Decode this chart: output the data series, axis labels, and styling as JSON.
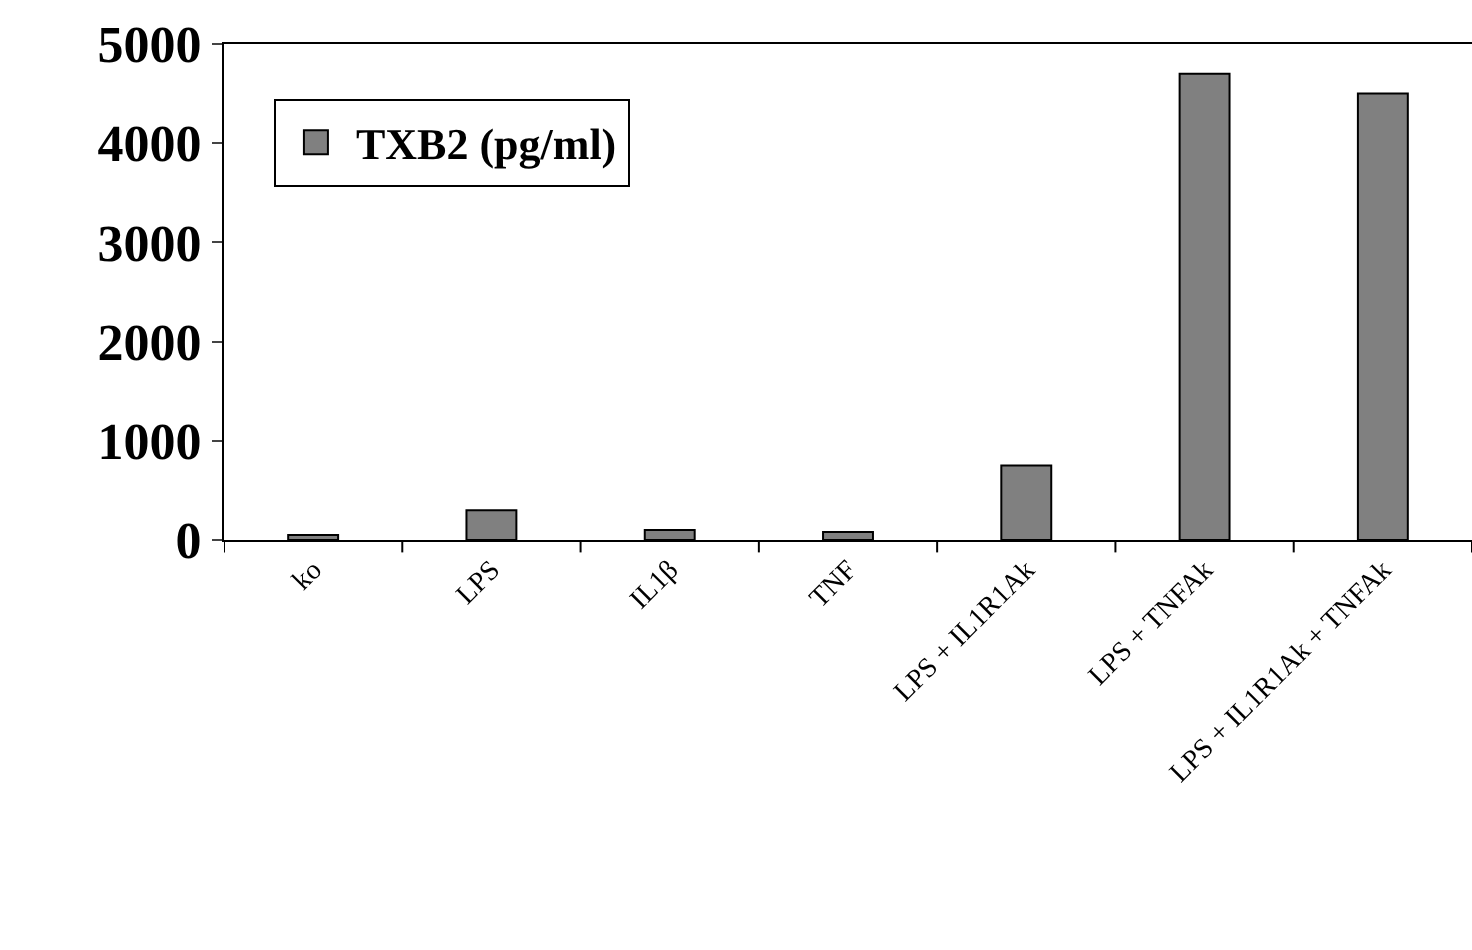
{
  "chart_data": {
    "type": "bar",
    "categories": [
      "ko",
      "LPS",
      "IL1β",
      "TNF",
      "LPS + IL1R1Ak",
      "LPS + TNFAk",
      "LPS + IL1R1Ak + TNFAk"
    ],
    "series": [
      {
        "name": "TXB2 (pg/ml)",
        "color": "#808080",
        "values": [
          50,
          300,
          100,
          80,
          750,
          4700,
          4500
        ]
      }
    ],
    "ylim": [
      0,
      5000
    ],
    "yticks": [
      0,
      1000,
      2000,
      3000,
      4000,
      5000
    ],
    "legend": "top left"
  }
}
